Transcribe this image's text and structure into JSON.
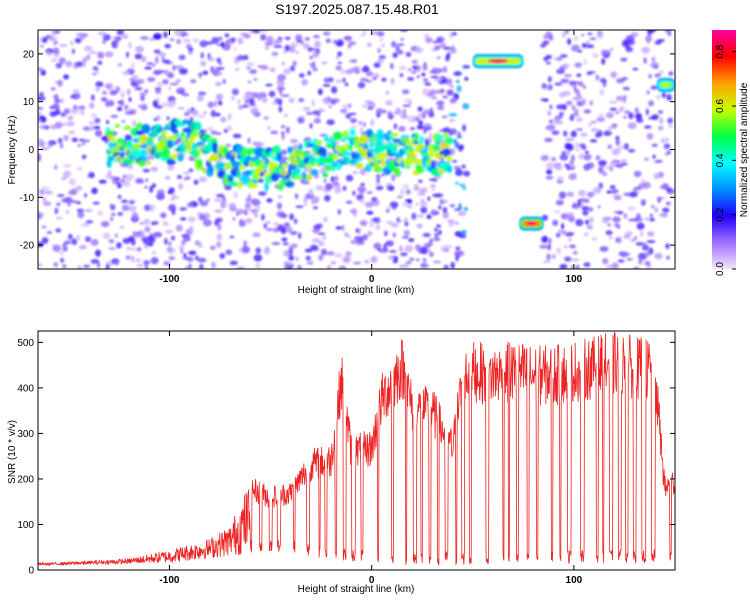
{
  "title": "S197.2025.087.15.48.R01",
  "chart_data": [
    {
      "type": "heatmap",
      "name": "spectrogram",
      "xlabel": "Height of straight line (km)",
      "ylabel": "Frequency (Hz)",
      "xlim": [
        -165,
        150
      ],
      "ylim": [
        -25,
        25
      ],
      "xticks": [
        -100,
        0,
        100
      ],
      "yticks": [
        -20,
        -10,
        0,
        10,
        20
      ],
      "colorbar": {
        "label": "Normalized spectral amplitude",
        "range": [
          0,
          0.88
        ],
        "ticks": [
          "0.0",
          "0.2",
          "0.4",
          "0.6",
          "0.8"
        ],
        "stops": [
          "#f2e6fb",
          "#a070ff",
          "#2000ff",
          "#0090ff",
          "#00ffff",
          "#00ff40",
          "#c8ff00",
          "#ffa000",
          "#ff0000",
          "#ff00a0"
        ]
      },
      "features": [
        {
          "kind": "noise_band",
          "x_range": [
            -165,
            40
          ],
          "y_range": [
            -25,
            25
          ],
          "amplitude": 0.15
        },
        {
          "kind": "noise_band",
          "x_range": [
            40,
            47
          ],
          "y_range": [
            -25,
            25
          ],
          "amplitude": 0.25
        },
        {
          "kind": "noise_band",
          "x_range": [
            84,
            148
          ],
          "y_range": [
            -25,
            25
          ],
          "amplitude": 0.15
        },
        {
          "kind": "trace",
          "x": [
            -130,
            -100,
            -90,
            -80,
            -70,
            -60,
            -45,
            -35,
            -25,
            -15,
            0,
            15,
            30,
            39
          ],
          "y": [
            1,
            1,
            3,
            -2,
            -3,
            -4,
            -4,
            -3,
            -2,
            0,
            0,
            -1,
            -1,
            -1
          ],
          "amplitude": 0.45
        },
        {
          "kind": "blob",
          "x_range": [
            50,
            75
          ],
          "y_center": 18.5,
          "amplitude": 0.6,
          "peak": 0.85
        },
        {
          "kind": "blob",
          "x_range": [
            73,
            85
          ],
          "y_center": -15.5,
          "amplitude": 0.7,
          "peak": 0.85
        },
        {
          "kind": "blob",
          "x_range": [
            141,
            150
          ],
          "y_center": 13.5,
          "amplitude": 0.55,
          "peak": 0.6
        }
      ]
    },
    {
      "type": "line",
      "name": "snr",
      "xlabel": "Height of straight line (km)",
      "ylabel": "SNR (10 * v/v)",
      "xlim": [
        -165,
        150
      ],
      "ylim": [
        0,
        525
      ],
      "xticks": [
        -100,
        0,
        100
      ],
      "yticks": [
        0,
        100,
        200,
        300,
        400,
        500
      ],
      "color": "#ee2222",
      "envelope": {
        "x": [
          -165,
          -140,
          -120,
          -100,
          -80,
          -70,
          -60,
          -50,
          -40,
          -30,
          -20,
          -15,
          -10,
          0,
          5,
          15,
          20,
          30,
          40,
          45,
          50,
          60,
          70,
          80,
          90,
          100,
          110,
          120,
          130,
          140,
          145,
          150
        ],
        "y": [
          15,
          20,
          25,
          45,
          70,
          100,
          200,
          180,
          190,
          260,
          270,
          470,
          290,
          300,
          420,
          500,
          400,
          390,
          300,
          470,
          490,
          480,
          490,
          480,
          480,
          490,
          500,
          510,
          500,
          490,
          200,
          220
        ]
      },
      "floor": {
        "x": [
          -165,
          -100,
          -80,
          -60,
          -40,
          -20,
          0,
          20,
          40,
          60,
          100,
          150
        ],
        "y": [
          10,
          15,
          25,
          35,
          40,
          20,
          15,
          10,
          10,
          12,
          15,
          15
        ]
      }
    }
  ]
}
